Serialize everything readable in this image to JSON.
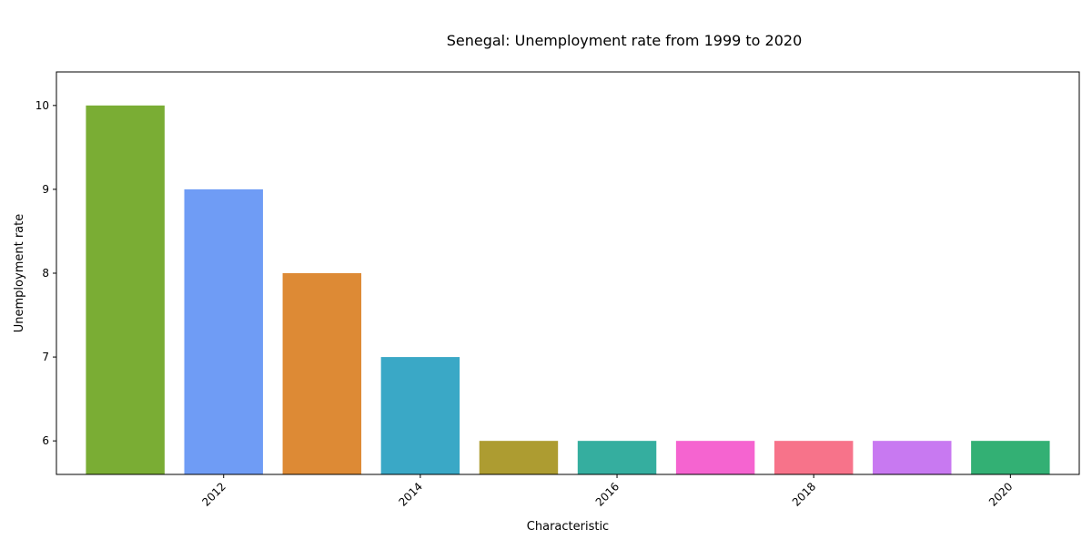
{
  "chart_data": {
    "type": "bar",
    "title": "Senegal: Unemployment rate from 1999 to 2020",
    "xlabel": "Characteristic",
    "ylabel": "Unemployment rate",
    "x": [
      2011,
      2012,
      2013,
      2014,
      2015,
      2016,
      2017,
      2018,
      2019,
      2020
    ],
    "values": [
      10,
      9,
      8,
      7,
      6,
      6,
      6,
      6,
      6,
      6
    ],
    "colors": [
      "#7aad34",
      "#6f9cf5",
      "#dd8a35",
      "#3aa8c6",
      "#ad9c31",
      "#35ae9f",
      "#f564d0",
      "#f7738a",
      "#c879f1",
      "#33b074"
    ],
    "ylim": [
      5.6,
      10.4
    ],
    "xlim": [
      2010.3,
      2020.7
    ],
    "y_ticks": [
      6,
      7,
      8,
      9,
      10
    ],
    "x_ticks": [
      2012,
      2014,
      2016,
      2018,
      2020
    ],
    "grid": false,
    "legend": "none"
  }
}
